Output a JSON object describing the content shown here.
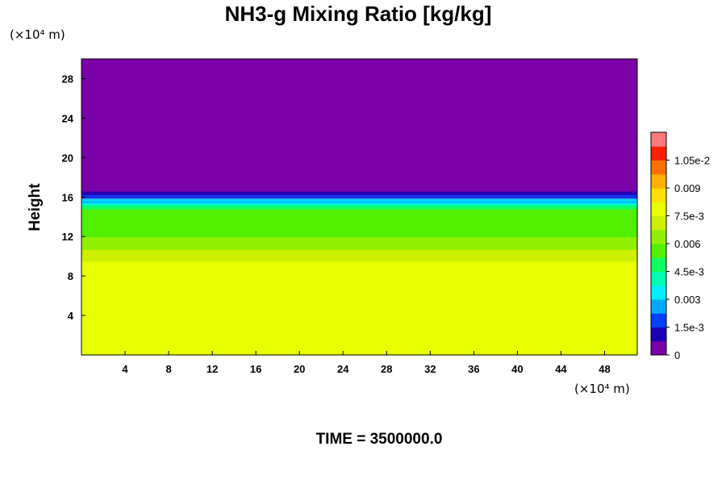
{
  "chart_data": {
    "type": "heatmap",
    "title": "NH3-g Mixing Ratio [kg/kg]",
    "xlabel": "",
    "ylabel": "Height",
    "x_unit": "(×10⁴ m)",
    "y_unit": "(×10⁴ m)",
    "xlim": [
      0,
      51
    ],
    "ylim": [
      0,
      30
    ],
    "x_ticks": [
      "4",
      "8",
      "12",
      "16",
      "20",
      "24",
      "28",
      "32",
      "36",
      "40",
      "44",
      "48"
    ],
    "y_ticks": [
      "4",
      "8",
      "12",
      "16",
      "20",
      "24",
      "28"
    ],
    "colorbar": {
      "min": 0,
      "max": 0.012,
      "tick_labels": [
        "1.05e-2",
        "0.009",
        "7.5e-3",
        "0.006",
        "4.5e-3",
        "0.003",
        "1.5e-3",
        "0"
      ],
      "tick_values": [
        0.0105,
        0.009,
        0.0075,
        0.006,
        0.0045,
        0.003,
        0.0015,
        0
      ],
      "colors": [
        "#7a00a8",
        "#1a00b4",
        "#0040ff",
        "#00a8ff",
        "#00f0ff",
        "#00ffb0",
        "#10ff60",
        "#50f000",
        "#90f000",
        "#ccf000",
        "#e8ff00",
        "#ffe000",
        "#ffb000",
        "#ff7000",
        "#ff2000",
        "#ff7a7a"
      ]
    },
    "field_profile": {
      "height": [
        0,
        9,
        10,
        11,
        12,
        13,
        14,
        15,
        16,
        30
      ],
      "value": [
        0.0079,
        0.0079,
        0.0071,
        0.0066,
        0.006,
        0.0058,
        0.0055,
        0.0052,
        0.0002,
        0
      ],
      "cloud_top_approx": 16.2
    },
    "grid": false,
    "legend": "colorbar-right"
  },
  "footer": {
    "time_label": "TIME = 3500000.0"
  }
}
